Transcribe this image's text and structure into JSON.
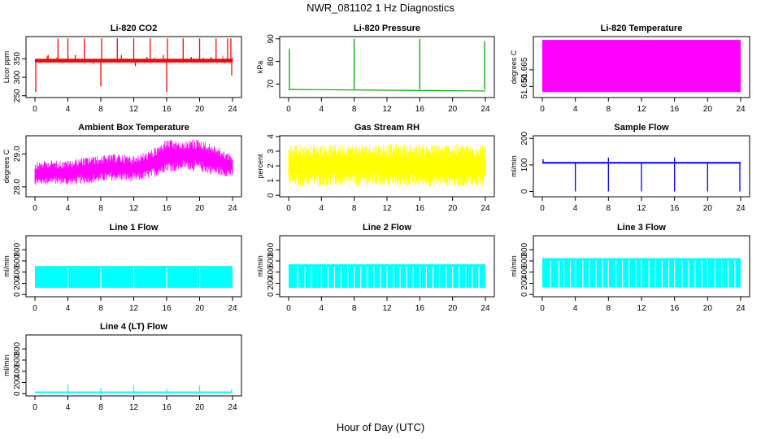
{
  "page": {
    "title": "NWR_081102  1 Hz Diagnostics",
    "xlabel": "Hour of Day (UTC)"
  },
  "chart_data": [
    {
      "title": "Li-820 CO2",
      "type": "line",
      "ylabel": "Licor ppm",
      "xlim": [
        0,
        24
      ],
      "ylim": [
        245,
        410
      ],
      "xticks": [
        "0",
        "4",
        "8",
        "12",
        "16",
        "20",
        "24"
      ],
      "yticks": [
        250,
        300,
        350
      ],
      "color": "#ff0000",
      "baseline": 345,
      "band": [
        340,
        350
      ],
      "spikes": [
        {
          "x": 0.1,
          "y": 260
        },
        {
          "x": 1.6,
          "y": 360
        },
        {
          "x": 2.8,
          "y": 405
        },
        {
          "x": 3.0,
          "y": 350
        },
        {
          "x": 4.0,
          "y": 405
        },
        {
          "x": 4.9,
          "y": 360
        },
        {
          "x": 6.0,
          "y": 405
        },
        {
          "x": 7.0,
          "y": 350
        },
        {
          "x": 8.0,
          "y": 275
        },
        {
          "x": 8.1,
          "y": 405
        },
        {
          "x": 10.0,
          "y": 405
        },
        {
          "x": 10.5,
          "y": 360
        },
        {
          "x": 12.0,
          "y": 405
        },
        {
          "x": 12.2,
          "y": 330
        },
        {
          "x": 13.6,
          "y": 355
        },
        {
          "x": 14.0,
          "y": 405
        },
        {
          "x": 15.6,
          "y": 360
        },
        {
          "x": 16.0,
          "y": 260
        },
        {
          "x": 16.1,
          "y": 405
        },
        {
          "x": 18.0,
          "y": 405
        },
        {
          "x": 19.0,
          "y": 355
        },
        {
          "x": 20.0,
          "y": 405
        },
        {
          "x": 21.4,
          "y": 355
        },
        {
          "x": 22.0,
          "y": 405
        },
        {
          "x": 23.4,
          "y": 405
        },
        {
          "x": 23.8,
          "y": 405
        },
        {
          "x": 23.9,
          "y": 305
        }
      ]
    },
    {
      "title": "Li-820 Pressure",
      "type": "line",
      "ylabel": "kPa",
      "xlim": [
        0,
        24
      ],
      "ylim": [
        64,
        91
      ],
      "xticks": [
        "0",
        "4",
        "8",
        "12",
        "16",
        "20",
        "24"
      ],
      "yticks": [
        70,
        80,
        90
      ],
      "color": "#00aa00",
      "baseline_start": 67.6,
      "baseline_end": 66.9,
      "spikes": [
        {
          "x": 0.1,
          "y": 85.5
        },
        {
          "x": 8.0,
          "y": 90
        },
        {
          "x": 16.0,
          "y": 90
        },
        {
          "x": 23.9,
          "y": 89
        }
      ]
    },
    {
      "title": "Li-820 Temperature",
      "type": "area",
      "ylabel": "degrees C",
      "xlim": [
        0,
        24
      ],
      "ylim": [
        51.64,
        51.695
      ],
      "xticks": [
        "0",
        "4",
        "8",
        "12",
        "16",
        "20",
        "24"
      ],
      "yticks": [
        51.65,
        51.665
      ],
      "ytick_labels": [
        "51.650",
        "51.665"
      ],
      "color": "#ff00ff",
      "band": [
        51.645,
        51.692
      ]
    },
    {
      "title": "Ambient Box Temperature",
      "type": "line",
      "ylabel": "degrees C",
      "xlim": [
        0,
        24
      ],
      "ylim": [
        27.7,
        29.55
      ],
      "xticks": [
        "0",
        "4",
        "8",
        "12",
        "16",
        "20",
        "24"
      ],
      "yticks": [
        28.0,
        29.0
      ],
      "ytick_labels": [
        "28.0",
        "29.0"
      ],
      "color": "#ff00ff",
      "envelope": {
        "x": [
          0,
          2,
          4,
          6,
          8,
          10,
          12,
          14,
          15,
          16,
          17,
          18,
          19,
          20,
          22,
          24
        ],
        "low": [
          28.05,
          28.1,
          28.05,
          28.1,
          28.15,
          28.2,
          28.15,
          28.25,
          28.35,
          28.5,
          28.45,
          28.55,
          28.5,
          28.45,
          28.35,
          28.3
        ],
        "high": [
          28.75,
          28.8,
          28.8,
          28.9,
          28.95,
          29.0,
          28.95,
          29.1,
          29.25,
          29.45,
          29.4,
          29.35,
          29.45,
          29.45,
          29.25,
          28.95
        ]
      }
    },
    {
      "title": "Gas Stream RH",
      "type": "area",
      "ylabel": "percent",
      "xlim": [
        0,
        24
      ],
      "ylim": [
        -0.1,
        4.05
      ],
      "xticks": [
        "0",
        "4",
        "8",
        "12",
        "16",
        "20",
        "24"
      ],
      "yticks": [
        0,
        1,
        2,
        3,
        4
      ],
      "color": "#ffff00",
      "band": [
        0.6,
        3.5
      ],
      "core": [
        1.5,
        2.6
      ]
    },
    {
      "title": "Sample Flow",
      "type": "line",
      "ylabel": "ml/min",
      "xlim": [
        0,
        24
      ],
      "ylim": [
        -20,
        210
      ],
      "xticks": [
        "0",
        "4",
        "8",
        "12",
        "16",
        "20",
        "24"
      ],
      "yticks": [
        0,
        100,
        200
      ],
      "color": "#0000ff",
      "baseline": 108,
      "dips": [
        {
          "x": 4.0,
          "y": 0
        },
        {
          "x": 8.0,
          "y": 0
        },
        {
          "x": 12.0,
          "y": 0
        },
        {
          "x": 16.0,
          "y": 0
        },
        {
          "x": 20.0,
          "y": 0
        },
        {
          "x": 23.9,
          "y": 0
        }
      ],
      "spikes": [
        {
          "x": 0.1,
          "y": 122
        },
        {
          "x": 8.0,
          "y": 128
        },
        {
          "x": 16.0,
          "y": 128
        }
      ]
    },
    {
      "title": "Line 1 Flow",
      "type": "area",
      "ylabel": "ml/min",
      "xlim": [
        0,
        24
      ],
      "ylim": [
        -40,
        1050
      ],
      "xticks": [
        "0",
        "4",
        "8",
        "12",
        "16",
        "20",
        "24"
      ],
      "yticks": [
        0,
        200,
        400,
        600,
        800
      ],
      "color": "#00ffff",
      "band": [
        120,
        510
      ],
      "gaps": [
        4.0,
        8.0,
        12.0,
        16.0,
        20.0
      ]
    },
    {
      "title": "Line 2 Flow",
      "type": "area",
      "ylabel": "ml/min",
      "xlim": [
        0,
        24
      ],
      "ylim": [
        -40,
        1050
      ],
      "xticks": [
        "0",
        "4",
        "8",
        "12",
        "16",
        "20",
        "24"
      ],
      "yticks": [
        0,
        200,
        400,
        600,
        800
      ],
      "color": "#00ffff",
      "band": [
        120,
        540
      ],
      "gaps": [
        1.1,
        2.0,
        2.8,
        4.0,
        4.8,
        5.6,
        6.4,
        7.2,
        8.0,
        8.8,
        9.6,
        10.4,
        11.2,
        12.0,
        12.8,
        13.6,
        14.4,
        15.2,
        16.0,
        16.8,
        17.6,
        18.4,
        19.2,
        20.0,
        20.8,
        21.6,
        22.4,
        23.2
      ]
    },
    {
      "title": "Line 3 Flow",
      "type": "area",
      "ylabel": "ml/min",
      "xlim": [
        0,
        24
      ],
      "ylim": [
        -40,
        1050
      ],
      "xticks": [
        "0",
        "4",
        "8",
        "12",
        "16",
        "20",
        "24"
      ],
      "yticks": [
        0,
        200,
        400,
        600,
        800
      ],
      "color": "#00ffff",
      "band": [
        130,
        650
      ],
      "gaps": [
        1.0,
        2.0,
        2.6,
        3.4,
        4.0,
        4.9,
        5.7,
        6.5,
        7.3,
        8.0,
        8.9,
        9.7,
        10.5,
        11.3,
        12.0,
        12.9,
        13.7,
        14.5,
        15.3,
        16.0,
        16.9,
        17.7,
        18.5,
        19.3,
        20.0,
        20.9,
        21.7,
        22.5,
        23.3
      ]
    },
    {
      "title": "Line 4 (LT) Flow",
      "type": "line",
      "ylabel": "ml/min",
      "xlim": [
        0,
        24
      ],
      "ylim": [
        -40,
        1050
      ],
      "xticks": [
        "0",
        "4",
        "8",
        "12",
        "16",
        "20",
        "24"
      ],
      "yticks": [
        0,
        200,
        400,
        600,
        800
      ],
      "color": "#00ffff",
      "baseline": 25,
      "spikes": [
        {
          "x": 4.0,
          "y": 160
        },
        {
          "x": 8.0,
          "y": 100
        },
        {
          "x": 12.0,
          "y": 150
        },
        {
          "x": 16.0,
          "y": 90
        },
        {
          "x": 20.0,
          "y": 145
        },
        {
          "x": 23.9,
          "y": 80
        }
      ]
    }
  ]
}
